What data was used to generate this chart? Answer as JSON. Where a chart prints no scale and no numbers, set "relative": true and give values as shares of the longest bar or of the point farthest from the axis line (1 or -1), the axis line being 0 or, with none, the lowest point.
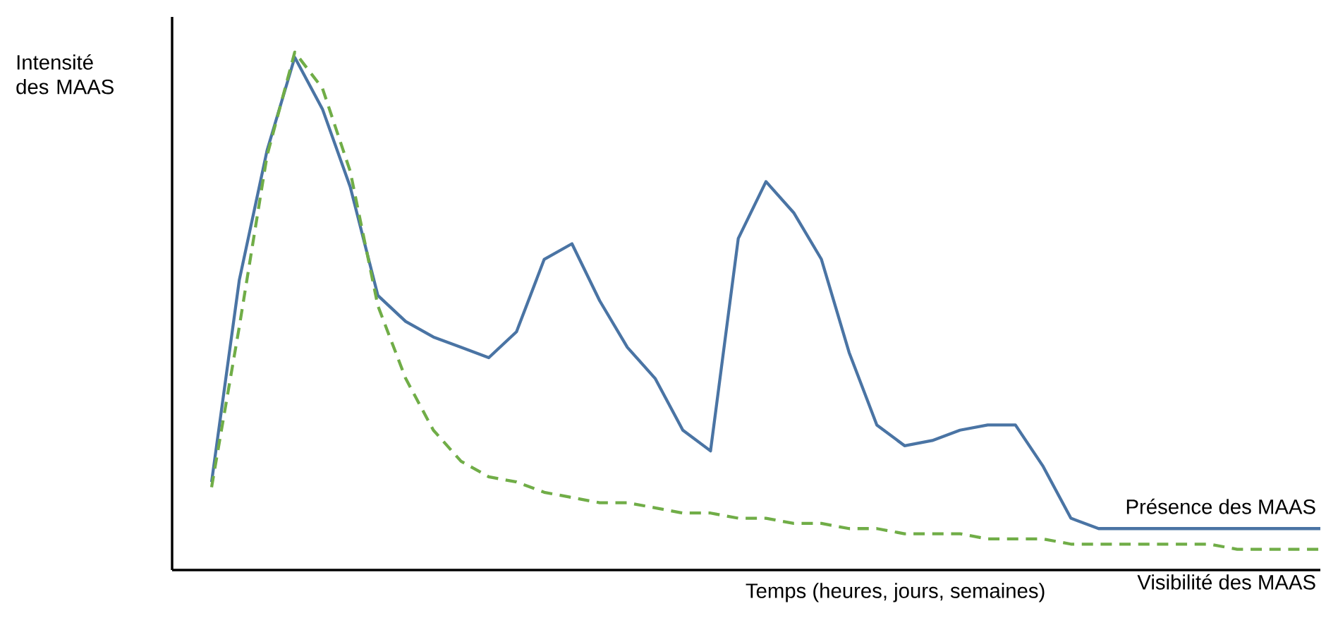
{
  "chart_data": {
    "type": "line",
    "relative": true,
    "xlabel": "Temps (heures, jours, semaines)",
    "ylabel": "Intensité des MAAS",
    "legend": false,
    "categories": [
      null,
      null,
      null,
      null,
      null,
      null,
      null,
      null,
      null,
      null,
      null,
      null,
      null,
      null,
      null,
      null,
      null,
      null,
      null,
      null,
      null,
      null,
      null,
      null,
      null,
      null,
      null,
      null,
      null,
      null,
      null,
      null,
      null,
      null,
      null,
      null,
      null,
      null,
      null,
      null,
      null
    ],
    "series": [
      {
        "name": "Présence des MAAS",
        "color": "#4a74a4",
        "line_style": "solid",
        "values": [
          0.17,
          0.56,
          0.81,
          0.99,
          0.89,
          0.74,
          0.53,
          0.48,
          0.45,
          0.43,
          0.41,
          0.46,
          0.6,
          0.63,
          0.52,
          0.43,
          0.37,
          0.27,
          0.23,
          0.64,
          0.75,
          0.69,
          0.6,
          0.42,
          0.28,
          0.24,
          0.25,
          0.27,
          0.28,
          0.28,
          0.2,
          0.1,
          0.08,
          0.08,
          0.08,
          0.08,
          0.08,
          0.08,
          0.08,
          0.08,
          0.08
        ]
      },
      {
        "name": "Visibilité des MAAS",
        "color": "#70ad47",
        "line_style": "dashed",
        "values": [
          0.16,
          0.47,
          0.8,
          1.0,
          0.93,
          0.77,
          0.51,
          0.37,
          0.27,
          0.21,
          0.18,
          0.17,
          0.15,
          0.14,
          0.13,
          0.13,
          0.12,
          0.11,
          0.11,
          0.1,
          0.1,
          0.09,
          0.09,
          0.08,
          0.08,
          0.07,
          0.07,
          0.07,
          0.06,
          0.06,
          0.06,
          0.05,
          0.05,
          0.05,
          0.05,
          0.05,
          0.05,
          0.04,
          0.04,
          0.04,
          0.04
        ]
      }
    ]
  }
}
